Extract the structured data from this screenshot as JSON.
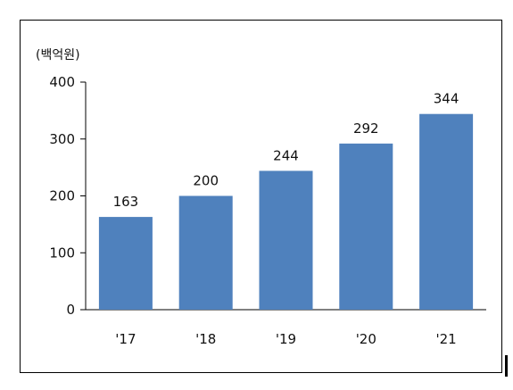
{
  "chart_data": {
    "type": "bar",
    "title": "",
    "ylabel": "(백억원)",
    "xlabel": "",
    "categories": [
      "'17",
      "'18",
      "'19",
      "'20",
      "'21"
    ],
    "values": [
      163,
      200,
      244,
      292,
      344
    ],
    "data_labels": [
      "163",
      "200",
      "244",
      "292",
      "344"
    ],
    "ylim": [
      0,
      400
    ],
    "yticks": [
      0,
      100,
      200,
      300,
      400
    ],
    "ytick_labels": [
      "0",
      "100",
      "200",
      "300",
      "400"
    ],
    "grid": false,
    "legend": "none",
    "colors": {
      "bar": "#4F81BD",
      "axis": "#000000",
      "text": "#111111"
    }
  }
}
